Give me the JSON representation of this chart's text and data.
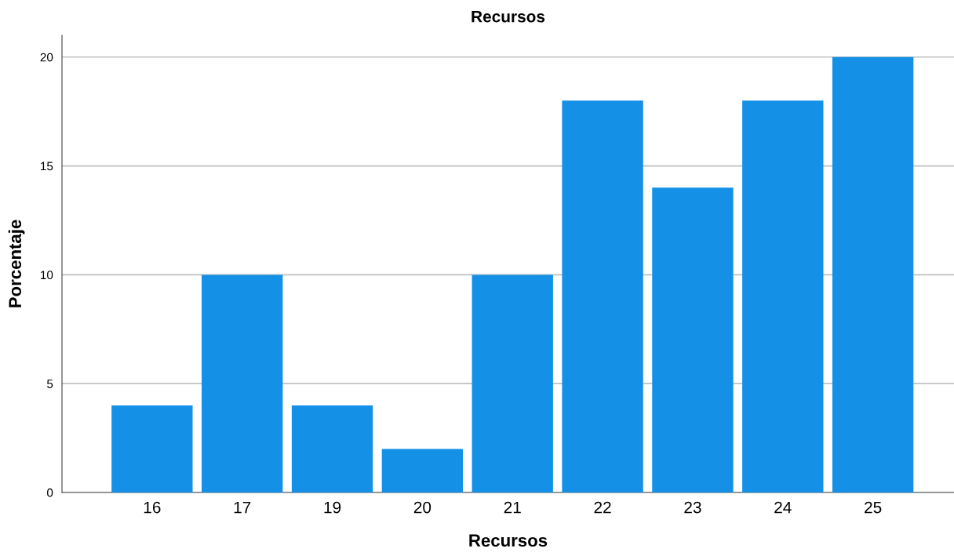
{
  "chart_data": {
    "type": "bar",
    "title": "Recursos",
    "xlabel": "Recursos",
    "ylabel": "Porcentaje",
    "categories": [
      "16",
      "17",
      "19",
      "20",
      "21",
      "22",
      "23",
      "24",
      "25"
    ],
    "values": [
      4,
      10,
      4,
      2,
      10,
      18,
      14,
      18,
      20
    ],
    "color": "#1491e6",
    "ylim": [
      0,
      21
    ],
    "yticks": [
      0,
      5,
      10,
      15,
      20
    ],
    "grid": "y"
  }
}
